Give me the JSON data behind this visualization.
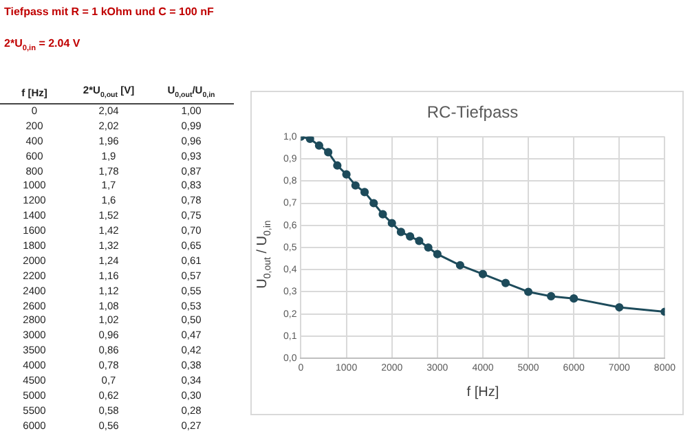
{
  "chart_data": [
    {
      "type": "heatmap",
      "title": "Tiefpass mit R = 1 kOhm und C = 100 nF",
      "subtitle": "2*U$_{0,in}$ = 2.04 V",
      "ylabel": "f [Hz]",
      "categories": [
        "2*U$_{0,out}$ [V]",
        "U$_{0,out}$/U$_{0,in}$"
      ],
      "y_categories": [
        "0",
        "200",
        "400",
        "600",
        "800",
        "1000",
        "1200",
        "1400",
        "1600",
        "1800",
        "2000",
        "2200",
        "2400",
        "2600",
        "2800",
        "3000",
        "3500",
        "4000",
        "4500",
        "5000",
        "5500",
        "6000"
      ],
      "cells": [
        [
          2.04,
          1.0
        ],
        [
          2.02,
          0.99
        ],
        [
          1.96,
          0.96
        ],
        [
          1.9,
          0.93
        ],
        [
          1.78,
          0.87
        ],
        [
          1.7,
          0.83
        ],
        [
          1.6,
          0.78
        ],
        [
          1.52,
          0.75
        ],
        [
          1.42,
          0.7
        ],
        [
          1.32,
          0.65
        ],
        [
          1.24,
          0.61
        ],
        [
          1.16,
          0.57
        ],
        [
          1.12,
          0.55
        ],
        [
          1.08,
          0.53
        ],
        [
          1.02,
          0.5
        ],
        [
          0.96,
          0.47
        ],
        [
          0.86,
          0.42
        ],
        [
          0.78,
          0.38
        ],
        [
          0.7,
          0.34
        ],
        [
          0.62,
          0.3
        ],
        [
          0.58,
          0.28
        ],
        [
          0.56,
          0.27
        ]
      ],
      "cell_labels": [
        [
          "2,04",
          "1,00"
        ],
        [
          "2,02",
          "0,99"
        ],
        [
          "1,96",
          "0,96"
        ],
        [
          "1,9",
          "0,93"
        ],
        [
          "1,78",
          "0,87"
        ],
        [
          "1,7",
          "0,83"
        ],
        [
          "1,6",
          "0,78"
        ],
        [
          "1,52",
          "0,75"
        ],
        [
          "1,42",
          "0,70"
        ],
        [
          "1,32",
          "0,65"
        ],
        [
          "1,24",
          "0,61"
        ],
        [
          "1,16",
          "0,57"
        ],
        [
          "1,12",
          "0,55"
        ],
        [
          "1,08",
          "0,53"
        ],
        [
          "1,02",
          "0,50"
        ],
        [
          "0,96",
          "0,47"
        ],
        [
          "0,86",
          "0,42"
        ],
        [
          "0,78",
          "0,38"
        ],
        [
          "0,7",
          "0,34"
        ],
        [
          "0,62",
          "0,30"
        ],
        [
          "0,58",
          "0,28"
        ],
        [
          "0,56",
          "0,27"
        ]
      ]
    },
    {
      "type": "line",
      "title": "RC-Tiefpass",
      "xlabel": "f [Hz]",
      "ylabel": "U$_{0,out}$ / U$_{0,in}$",
      "x": [
        0,
        200,
        400,
        600,
        800,
        1000,
        1200,
        1400,
        1600,
        1800,
        2000,
        2200,
        2400,
        2600,
        2800,
        3000,
        3500,
        4000,
        4500,
        5000,
        5500,
        6000,
        7000,
        8000
      ],
      "series": [
        {
          "color": "#1d4b5b",
          "values": [
            1.0,
            0.99,
            0.96,
            0.93,
            0.87,
            0.83,
            0.78,
            0.75,
            0.7,
            0.65,
            0.61,
            0.57,
            0.55,
            0.53,
            0.5,
            0.47,
            0.42,
            0.38,
            0.34,
            0.3,
            0.28,
            0.27,
            0.23,
            0.21
          ]
        }
      ],
      "xlim": [
        0,
        8000
      ],
      "xticks": [
        0,
        1000,
        2000,
        3000,
        4000,
        5000,
        6000,
        7000,
        8000
      ],
      "ylim": [
        0,
        1
      ],
      "yticks": [
        {
          "value": 0,
          "label": "0,0"
        },
        {
          "value": 0.1,
          "label": "0,1"
        },
        {
          "value": 0.2,
          "label": "0,2"
        },
        {
          "value": 0.3,
          "label": "0,3"
        },
        {
          "value": 0.4,
          "label": "0,4"
        },
        {
          "value": 0.5,
          "label": "0,5"
        },
        {
          "value": 0.6,
          "label": "0,6"
        },
        {
          "value": 0.7,
          "label": "0,7"
        },
        {
          "value": 0.8,
          "label": "0,8"
        },
        {
          "value": 0.9,
          "label": "0,9"
        },
        {
          "value": 1,
          "label": "1,0"
        }
      ],
      "grid": true,
      "marker": "circle"
    }
  ]
}
